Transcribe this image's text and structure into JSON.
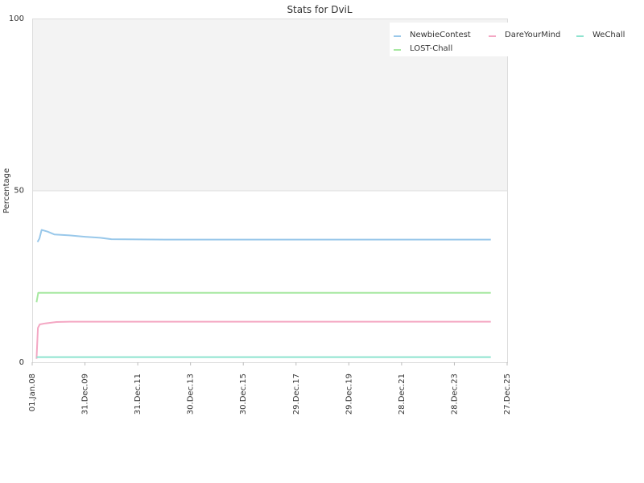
{
  "chart_data": {
    "type": "line",
    "title": "Stats for DviL",
    "xlabel": "",
    "ylabel": "Percentage",
    "ylim": [
      0,
      100
    ],
    "xlim": [
      "2008-01-01",
      "2025-12-27"
    ],
    "y_ticks": [
      0,
      50,
      100
    ],
    "x_ticks": [
      {
        "date": "2008-01-01",
        "label": "01.Jan.08"
      },
      {
        "date": "2009-12-31",
        "label": "31.Dec.09"
      },
      {
        "date": "2011-12-31",
        "label": "31.Dec.11"
      },
      {
        "date": "2013-12-30",
        "label": "30.Dec.13"
      },
      {
        "date": "2015-12-30",
        "label": "30.Dec.15"
      },
      {
        "date": "2017-12-29",
        "label": "29.Dec.17"
      },
      {
        "date": "2019-12-29",
        "label": "29.Dec.19"
      },
      {
        "date": "2021-12-28",
        "label": "28.Dec.21"
      },
      {
        "date": "2023-12-28",
        "label": "28.Dec.23"
      },
      {
        "date": "2025-12-27",
        "label": "27.Dec.25"
      }
    ],
    "shaded_band": {
      "from": 50,
      "to": 100,
      "color": "#f3f3f3"
    },
    "legend_position": "top-right",
    "series": [
      {
        "name": "NewbieContest",
        "color": "#99c8ea",
        "points": [
          [
            "2008-03-15",
            35.0
          ],
          [
            "2008-04-10",
            36.0
          ],
          [
            "2008-05-10",
            38.5
          ],
          [
            "2008-08-01",
            38.0
          ],
          [
            "2008-11-01",
            37.2
          ],
          [
            "2009-06-01",
            36.9
          ],
          [
            "2010-01-01",
            36.5
          ],
          [
            "2010-08-01",
            36.2
          ],
          [
            "2011-01-01",
            35.8
          ],
          [
            "2013-01-01",
            35.7
          ],
          [
            "2025-05-15",
            35.7
          ]
        ]
      },
      {
        "name": "DareYourMind",
        "color": "#f4a7c3",
        "points": [
          [
            "2008-03-01",
            1.0
          ],
          [
            "2008-03-20",
            10.0
          ],
          [
            "2008-04-15",
            11.0
          ],
          [
            "2008-07-01",
            11.3
          ],
          [
            "2008-12-01",
            11.7
          ],
          [
            "2009-06-01",
            11.8
          ],
          [
            "2025-05-15",
            11.8
          ]
        ]
      },
      {
        "name": "WeChall",
        "color": "#8ee3cf",
        "points": [
          [
            "2008-03-01",
            1.5
          ],
          [
            "2025-05-15",
            1.5
          ]
        ]
      },
      {
        "name": "LOST-Chall",
        "color": "#a6e8a0",
        "points": [
          [
            "2008-03-01",
            17.5
          ],
          [
            "2008-03-25",
            20.2
          ],
          [
            "2025-05-15",
            20.2
          ]
        ]
      }
    ]
  }
}
